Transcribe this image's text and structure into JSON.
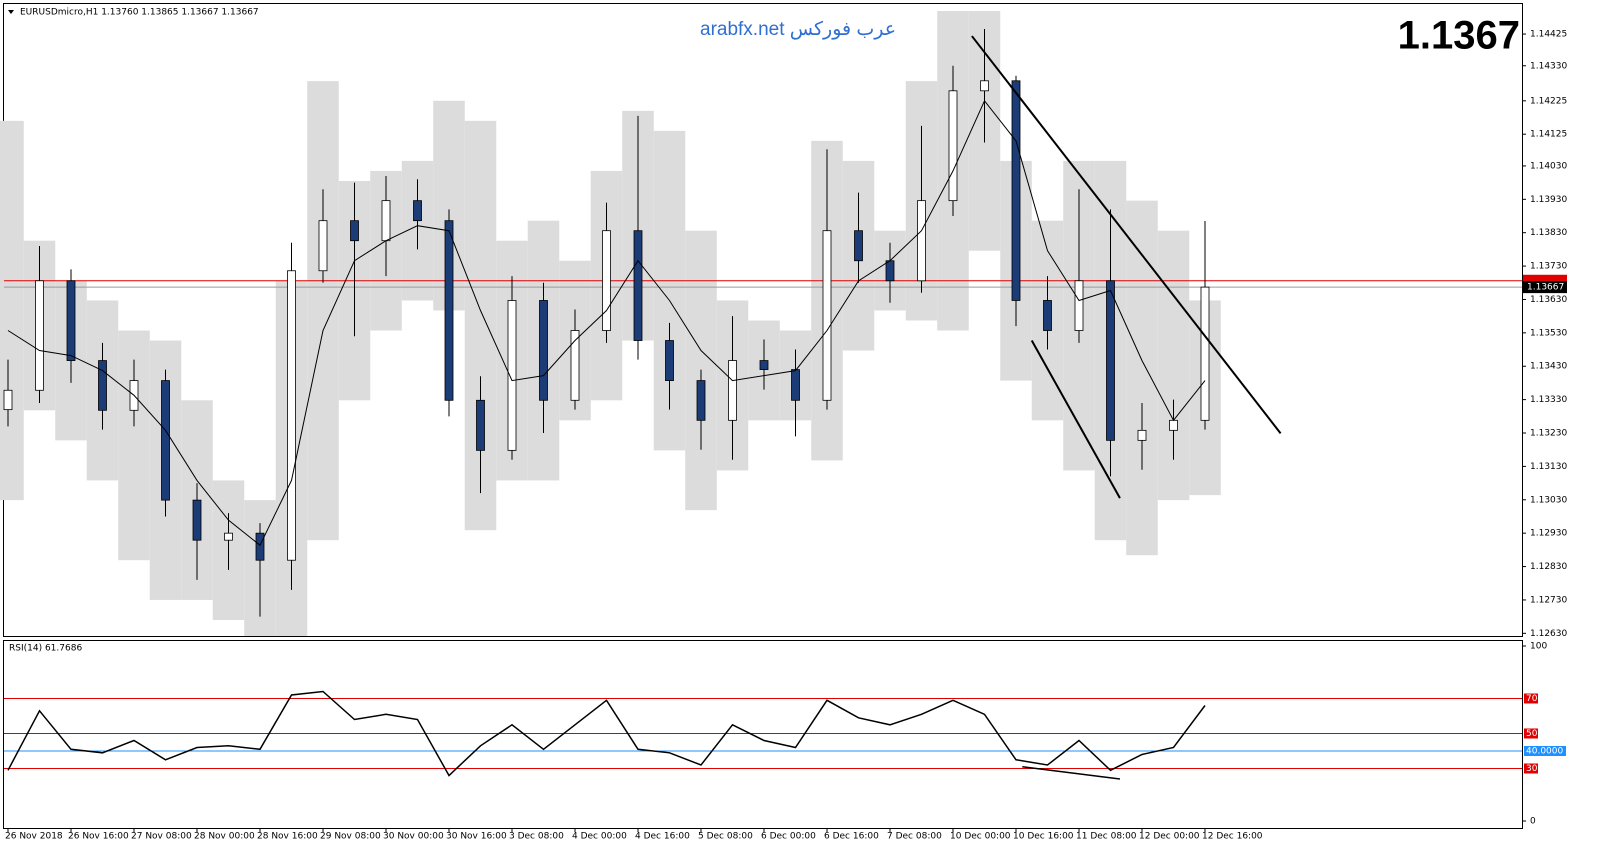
{
  "header": {
    "symbol_info": "EURUSDmicro,H1  1.13760 1.13865 1.13667 1.13667",
    "watermark": "arabfx.net عرب فوركس",
    "big_price": "1.1367"
  },
  "chart_data": [
    {
      "type": "candlestick",
      "categories": [
        "26 Nov 2018",
        null,
        "26 Nov 16:00",
        null,
        "27 Nov 08:00",
        null,
        "28 Nov 00:00",
        null,
        "28 Nov 16:00",
        null,
        "29 Nov 08:00",
        null,
        "30 Nov 00:00",
        null,
        "30 Nov 16:00",
        null,
        "3 Dec 08:00",
        null,
        "4 Dec 00:00",
        null,
        "4 Dec 16:00",
        null,
        "5 Dec 08:00",
        null,
        "6 Dec 00:00",
        null,
        "6 Dec 16:00",
        null,
        "7 Dec 08:00",
        null,
        "10 Dec 00:00",
        null,
        "10 Dec 16:00",
        null,
        "11 Dec 08:00",
        null,
        "12 Dec 00:00",
        null,
        "12 Dec 16:00"
      ],
      "open": [
        1.133,
        1.13358,
        1.13686,
        1.13447,
        1.13298,
        1.13387,
        1.13029,
        1.12909,
        1.1293,
        1.12849,
        1.13716,
        1.13866,
        1.13806,
        1.13926,
        1.13866,
        1.13328,
        1.13178,
        1.13627,
        1.13328,
        1.13537,
        1.13836,
        1.13507,
        1.13387,
        1.13268,
        1.13447,
        1.1342,
        1.13328,
        1.13836,
        1.13746,
        1.13686,
        1.13926,
        1.14255,
        1.14285,
        1.13627,
        1.13537,
        1.13686,
        1.13208,
        1.13238,
        1.13268
      ],
      "high": [
        1.1345,
        1.1379,
        1.1372,
        1.135,
        1.1345,
        1.1342,
        1.1308,
        1.1299,
        1.1296,
        1.138,
        1.1396,
        1.1398,
        1.14,
        1.1399,
        1.139,
        1.134,
        1.137,
        1.1368,
        1.136,
        1.1392,
        1.1418,
        1.1356,
        1.1342,
        1.1358,
        1.1351,
        1.1348,
        1.1408,
        1.1395,
        1.138,
        1.1415,
        1.1433,
        1.1444,
        1.143,
        1.137,
        1.1396,
        1.139,
        1.1332,
        1.1333,
        1.13865
      ],
      "low": [
        1.1325,
        1.1332,
        1.1338,
        1.1324,
        1.1325,
        1.1298,
        1.1279,
        1.1282,
        1.1268,
        1.1276,
        1.1368,
        1.1352,
        1.137,
        1.1378,
        1.1328,
        1.1305,
        1.1315,
        1.1323,
        1.133,
        1.135,
        1.1345,
        1.133,
        1.1318,
        1.1315,
        1.1336,
        1.1322,
        1.133,
        1.1368,
        1.1362,
        1.1365,
        1.1388,
        1.141,
        1.1355,
        1.1348,
        1.135,
        1.131,
        1.1312,
        1.1315,
        1.1324
      ],
      "close": [
        1.13358,
        1.13686,
        1.13447,
        1.13298,
        1.13387,
        1.13029,
        1.12909,
        1.1293,
        1.12849,
        1.13716,
        1.13866,
        1.13806,
        1.13926,
        1.13866,
        1.13328,
        1.13178,
        1.13627,
        1.13328,
        1.13537,
        1.13836,
        1.13507,
        1.13387,
        1.13268,
        1.13447,
        1.1342,
        1.13328,
        1.13836,
        1.13746,
        1.13686,
        1.13926,
        1.14255,
        1.14285,
        1.13627,
        1.13537,
        1.13686,
        1.13208,
        1.13238,
        1.13268,
        1.13667
      ],
      "ma": [
        1.13537,
        1.13477,
        1.13462,
        1.13417,
        1.13343,
        1.13238,
        1.13088,
        1.12969,
        1.12894,
        1.13088,
        1.13537,
        1.13746,
        1.13806,
        1.13851,
        1.13836,
        1.13597,
        1.13387,
        1.13402,
        1.13507,
        1.13597,
        1.13746,
        1.13627,
        1.13477,
        1.13387,
        1.13402,
        1.13417,
        1.13537,
        1.13686,
        1.13746,
        1.13836,
        1.14015,
        1.14225,
        1.14105,
        1.13776,
        1.13627,
        1.13657,
        1.13447,
        1.13268,
        1.13387
      ],
      "band_upper": [
        1.14165,
        1.13806,
        1.13686,
        1.13627,
        1.13537,
        1.13507,
        1.13328,
        1.13088,
        1.13029,
        1.13686,
        1.14284,
        1.13985,
        1.14015,
        1.14045,
        1.14225,
        1.14165,
        1.13806,
        1.13866,
        1.13746,
        1.14015,
        1.14195,
        1.14135,
        1.13836,
        1.13627,
        1.13567,
        1.13537,
        1.14105,
        1.14045,
        1.13836,
        1.14284,
        1.14494,
        1.14494,
        1.14045,
        1.13866,
        1.14045,
        1.14045,
        1.13926,
        1.13836,
        1.13627
      ],
      "band_lower": [
        1.13029,
        1.13298,
        1.13208,
        1.13088,
        1.12849,
        1.1273,
        1.1273,
        1.1267,
        1.12622,
        1.12622,
        1.12909,
        1.13328,
        1.13537,
        1.13627,
        1.13597,
        1.12939,
        1.13088,
        1.13088,
        1.13268,
        1.13328,
        1.13507,
        1.13178,
        1.12999,
        1.13118,
        1.13268,
        1.13268,
        1.13148,
        1.13477,
        1.13597,
        1.13567,
        1.13537,
        1.13776,
        1.13387,
        1.13268,
        1.13118,
        1.12909,
        1.12864,
        1.13029,
        1.13044
      ],
      "up_color": "#ffffff",
      "down_color": "#1c3c78",
      "ma_color": "#000000",
      "band_color": "#dcdcdc",
      "bid_line": 1.13667,
      "ask_line": 1.13686,
      "trendlines": [
        {
          "x0": 30.6,
          "y0": 1.14419,
          "x1": 40.4,
          "y1": 1.13229
        },
        {
          "x0": 32.5,
          "y0": 1.13507,
          "x1": 35.3,
          "y1": 1.13035
        }
      ],
      "ylim": [
        1.12622,
        1.14518
      ],
      "yticks": [
        1.14425,
        {
          "value": 1.1433,
          "label": "1.14330"
        },
        1.14225,
        1.14125,
        {
          "value": 1.1403,
          "label": "1.14030"
        },
        {
          "value": 1.1393,
          "label": "1.13930"
        },
        {
          "value": 1.1383,
          "label": "1.13830"
        },
        {
          "value": 1.1373,
          "label": "1.13730"
        },
        {
          "value": 1.1363,
          "label": "1.13630"
        },
        {
          "value": 1.1353,
          "label": "1.13530"
        },
        {
          "value": 1.1343,
          "label": "1.13430"
        },
        {
          "value": 1.1333,
          "label": "1.13330"
        },
        {
          "value": 1.1323,
          "label": "1.13230"
        },
        {
          "value": 1.1313,
          "label": "1.13130"
        },
        {
          "value": 1.1303,
          "label": "1.13030"
        },
        {
          "value": 1.1293,
          "label": "1.12930"
        },
        {
          "value": 1.1283,
          "label": "1.12830"
        },
        {
          "value": 1.1273,
          "label": "1.12730"
        },
        {
          "value": 1.1263,
          "label": "1.12630"
        }
      ]
    },
    {
      "type": "line",
      "title": "RSI(14) 61.7686",
      "values": [
        29,
        63,
        41,
        39,
        46,
        35,
        42,
        43,
        41,
        72,
        74,
        58,
        61,
        58,
        26,
        43,
        55,
        41,
        55,
        69,
        41,
        39,
        32,
        55,
        46,
        42,
        69,
        59,
        55,
        61,
        69,
        61,
        35,
        32,
        46,
        29,
        38,
        42,
        66
      ],
      "color": "#000000",
      "trendlines": [
        {
          "x0": 32.2,
          "y0": 31,
          "x1": 35.3,
          "y1": 24
        }
      ],
      "ylim": [
        0,
        100
      ],
      "yticks": [
        100,
        0
      ],
      "levels": [
        {
          "value": 70,
          "color": "#e00000"
        },
        {
          "value": 50,
          "color": "#e00000"
        },
        {
          "value": 40,
          "label": "40.0000",
          "color": "#1e90ff"
        },
        {
          "value": 30,
          "color": "#e00000"
        }
      ]
    }
  ]
}
